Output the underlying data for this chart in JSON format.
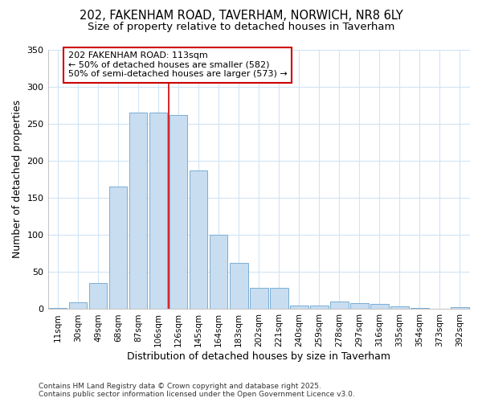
{
  "title1": "202, FAKENHAM ROAD, TAVERHAM, NORWICH, NR8 6LY",
  "title2": "Size of property relative to detached houses in Taverham",
  "xlabel": "Distribution of detached houses by size in Taverham",
  "ylabel": "Number of detached properties",
  "categories": [
    "11sqm",
    "30sqm",
    "49sqm",
    "68sqm",
    "87sqm",
    "106sqm",
    "126sqm",
    "145sqm",
    "164sqm",
    "183sqm",
    "202sqm",
    "221sqm",
    "240sqm",
    "259sqm",
    "278sqm",
    "297sqm",
    "316sqm",
    "335sqm",
    "354sqm",
    "373sqm",
    "392sqm"
  ],
  "values": [
    2,
    9,
    35,
    165,
    265,
    265,
    262,
    187,
    100,
    62,
    29,
    29,
    5,
    5,
    10,
    8,
    7,
    4,
    2,
    1,
    3
  ],
  "bar_color": "#c8ddf0",
  "bar_edge_color": "#7aaed4",
  "vline_x_index": 5.5,
  "vline_color": "#cc0000",
  "annotation_text": "202 FAKENHAM ROAD: 113sqm\n← 50% of detached houses are smaller (582)\n50% of semi-detached houses are larger (573) →",
  "annotation_box_facecolor": "#ffffff",
  "annotation_box_edgecolor": "#cc0000",
  "ylim": [
    0,
    350
  ],
  "yticks": [
    0,
    50,
    100,
    150,
    200,
    250,
    300,
    350
  ],
  "footer": "Contains HM Land Registry data © Crown copyright and database right 2025.\nContains public sector information licensed under the Open Government Licence v3.0.",
  "bg_color": "#ffffff",
  "grid_color": "#d0e4f5",
  "title_fontsize": 10.5,
  "subtitle_fontsize": 9.5,
  "tick_fontsize": 7.5,
  "label_fontsize": 9,
  "footer_fontsize": 6.5,
  "ann_fontsize": 8
}
